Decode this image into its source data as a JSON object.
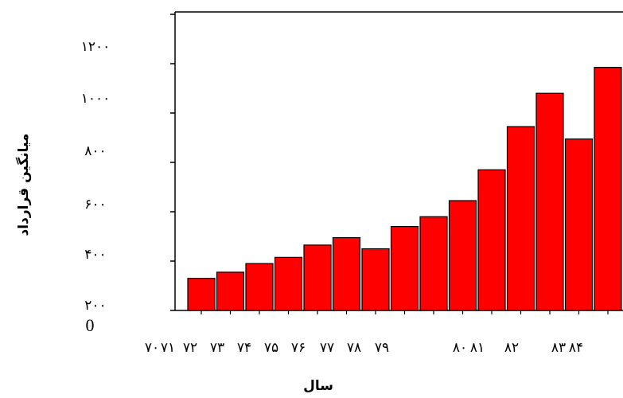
{
  "chart_data": {
    "type": "bar",
    "xlabel": "سال",
    "ylabel": "میانگین قرارداد",
    "y_tick_labels": [
      "۱۲۰۰",
      "۱۰۰۰",
      "۸۰۰",
      "۶۰۰",
      "۴۰۰",
      "۲۰۰"
    ],
    "y_extra_label": "0",
    "x_tick_labels": [
      "۷۰",
      "۷۱",
      "۷۲",
      "۷۳",
      "۷۴",
      "۷۵",
      "۷۶",
      "۷۷",
      "۷۸",
      "۷۹",
      "۸۰",
      "۸۱",
      "۸۲",
      "۸۳",
      "۸۴"
    ],
    "categories": [
      "۷۰",
      "۷۱",
      "۷۲",
      "۷۳",
      "۷۴",
      "۷۵",
      "۷۶",
      "۷۷",
      "۷۸",
      "۷۹",
      "۸۰",
      "۸۱",
      "۸۲",
      "۸۳",
      "۸۴"
    ],
    "values": [
      130,
      155,
      190,
      215,
      265,
      295,
      250,
      340,
      380,
      445,
      570,
      745,
      880,
      695,
      985
    ],
    "ylim": [
      0,
      1200
    ],
    "bar_color": "#ff0000",
    "bar_edge_color": "#000000",
    "grid": false
  }
}
